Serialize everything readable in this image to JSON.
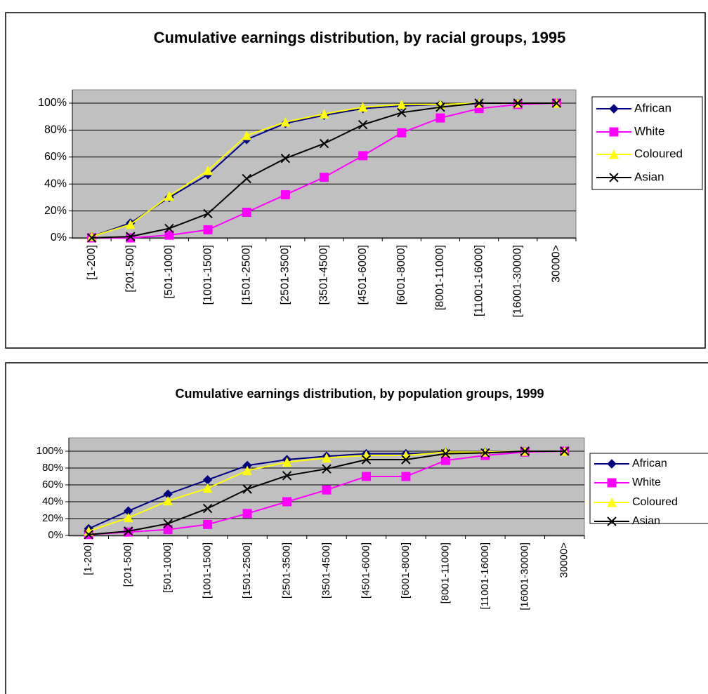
{
  "chart_data": [
    {
      "type": "line",
      "title": "Cumulative earnings distribution, by racial groups, 1995",
      "categories": [
        "[1-200]",
        "[201-500]",
        "[501-1000]",
        "[1001-1500]",
        "[1501-2500]",
        "[2501-3500]",
        "[3501-4500]",
        "[4501-6000]",
        "[6001-8000]",
        "[8001-11000]",
        "[11001-16000]",
        "[16001-30000]",
        "30000>"
      ],
      "series": [
        {
          "name": "African",
          "color": "#000080",
          "marker": "diamond",
          "values": [
            1,
            11,
            30,
            47,
            73,
            85,
            91,
            96,
            98,
            99,
            100,
            100,
            100
          ]
        },
        {
          "name": "White",
          "color": "#ff00ff",
          "marker": "square",
          "values": [
            0,
            0,
            2,
            6,
            19,
            32,
            45,
            61,
            78,
            89,
            96,
            99,
            100
          ]
        },
        {
          "name": "Coloured",
          "color": "#ffff00",
          "marker": "triangle",
          "values": [
            1,
            10,
            31,
            50,
            76,
            86,
            92,
            97,
            99,
            99,
            100,
            100,
            100
          ]
        },
        {
          "name": "Asian",
          "color": "#000000",
          "marker": "x",
          "values": [
            0,
            1,
            7,
            18,
            44,
            59,
            70,
            84,
            93,
            97,
            100,
            100,
            100
          ]
        }
      ],
      "ylim": [
        0,
        100
      ],
      "yticks": [
        {
          "value": 0,
          "label": "0%"
        },
        {
          "value": 20,
          "label": "20%"
        },
        {
          "value": 40,
          "label": "40%"
        },
        {
          "value": 60,
          "label": "60%"
        },
        {
          "value": 80,
          "label": "80%"
        },
        {
          "value": 100,
          "label": "100%"
        }
      ],
      "grid": true,
      "legend": "right"
    },
    {
      "type": "line",
      "title": "Cumulative earnings distribution, by population groups, 1999",
      "categories": [
        "[1-200]",
        "[201-500]",
        "[501-1000]",
        "[1001-1500]",
        "[1501-2500]",
        "[2501-3500]",
        "[3501-4500]",
        "[4501-6000]",
        "[6001-8000]",
        "[8001-11000]",
        "[11001-16000]",
        "[16001-30000]",
        "30000>"
      ],
      "series": [
        {
          "name": "African",
          "color": "#000080",
          "marker": "diamond",
          "values": [
            8,
            29,
            49,
            66,
            83,
            90,
            94,
            97,
            97,
            99,
            99,
            100,
            100
          ]
        },
        {
          "name": "White",
          "color": "#ff00ff",
          "marker": "square",
          "values": [
            1,
            4,
            7,
            13,
            26,
            40,
            54,
            70,
            70,
            89,
            95,
            99,
            100
          ]
        },
        {
          "name": "Coloured",
          "color": "#ffff00",
          "marker": "triangle",
          "values": [
            5,
            21,
            41,
            56,
            77,
            87,
            92,
            95,
            95,
            99,
            99,
            100,
            100
          ]
        },
        {
          "name": "Asian",
          "color": "#000000",
          "marker": "x",
          "values": [
            1,
            5,
            14,
            32,
            55,
            71,
            79,
            90,
            90,
            97,
            98,
            100,
            100
          ]
        }
      ],
      "ylim": [
        0,
        100
      ],
      "yticks": [
        {
          "value": 0,
          "label": "0%"
        },
        {
          "value": 20,
          "label": "20%"
        },
        {
          "value": 40,
          "label": "40%"
        },
        {
          "value": 60,
          "label": "60%"
        },
        {
          "value": 80,
          "label": "80%"
        },
        {
          "value": 100,
          "label": "100%"
        }
      ],
      "grid": true,
      "legend": "right"
    }
  ]
}
